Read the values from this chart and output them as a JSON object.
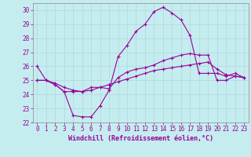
{
  "xlabel": "Windchill (Refroidissement éolien,°C)",
  "ylabel": "",
  "xlim": [
    -0.5,
    23.5
  ],
  "ylim": [
    22,
    30.5
  ],
  "yticks": [
    22,
    23,
    24,
    25,
    26,
    27,
    28,
    29,
    30
  ],
  "xticks": [
    0,
    1,
    2,
    3,
    4,
    5,
    6,
    7,
    8,
    9,
    10,
    11,
    12,
    13,
    14,
    15,
    16,
    17,
    18,
    19,
    20,
    21,
    22,
    23
  ],
  "background_color": "#c5edf0",
  "grid_color": "#b0d8dc",
  "line_color": "#990099",
  "line1": [
    26.0,
    25.0,
    24.7,
    24.2,
    22.5,
    22.4,
    22.4,
    23.2,
    24.3,
    26.7,
    27.5,
    28.5,
    29.0,
    29.9,
    30.2,
    29.8,
    29.3,
    28.2,
    25.5,
    25.5,
    25.5,
    25.3,
    25.5,
    25.2
  ],
  "line2": [
    25.0,
    25.0,
    24.7,
    24.2,
    24.2,
    24.2,
    24.5,
    24.5,
    24.4,
    25.2,
    25.6,
    25.8,
    25.9,
    26.1,
    26.4,
    26.6,
    26.8,
    26.9,
    26.8,
    26.8,
    25.0,
    25.0,
    25.3,
    25.2
  ],
  "line3": [
    25.0,
    25.0,
    24.8,
    24.5,
    24.3,
    24.2,
    24.3,
    24.5,
    24.7,
    24.9,
    25.1,
    25.3,
    25.5,
    25.7,
    25.8,
    25.9,
    26.0,
    26.1,
    26.2,
    26.3,
    25.8,
    25.4,
    25.3,
    25.2
  ],
  "marker": "+"
}
